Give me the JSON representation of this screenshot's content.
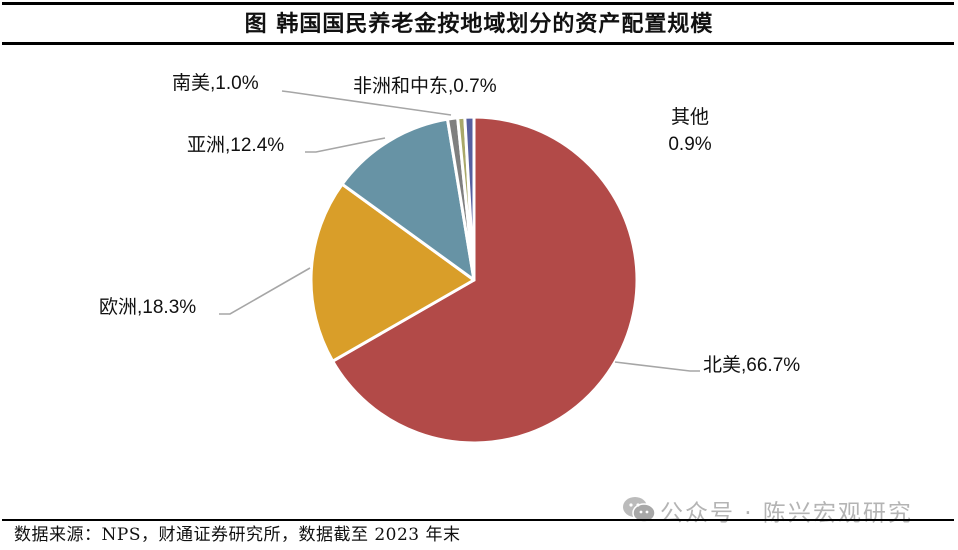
{
  "title": "图  韩国国民养老金按地域划分的资产配置规模",
  "source_note": "数据来源：NPS，财通证券研究所，数据截至 2023 年末",
  "watermark": "公众号 · 陈兴宏观研究",
  "labels": {
    "north_america": "北美,66.7%",
    "europe": "欧洲,18.3%",
    "asia": "亚洲,12.4%",
    "south_america": "南美,1.0%",
    "africa_mideast": "非洲和中东,0.7%",
    "other_name": "其他",
    "other_value": "0.9%"
  },
  "colors": {
    "north_america": "#B24A48",
    "europe": "#D99E29",
    "asia": "#6793A5",
    "south_america": "#7F7F7F",
    "africa_mideast": "#A9A86A",
    "other": "#5660A0",
    "leader_line": "#A6A6A6"
  },
  "chart_data": {
    "type": "pie",
    "title": "韩国国民养老金按地域划分的资产配置规模",
    "categories": [
      "北美",
      "欧洲",
      "亚洲",
      "南美",
      "非洲和中东",
      "其他"
    ],
    "values": [
      66.7,
      18.3,
      12.4,
      1.0,
      0.7,
      0.9
    ],
    "unit": "%",
    "start_angle": "12 o'clock, clockwise",
    "legend": "none (data labels with leader lines)",
    "source": "NPS，财通证券研究所，数据截至 2023 年末"
  }
}
